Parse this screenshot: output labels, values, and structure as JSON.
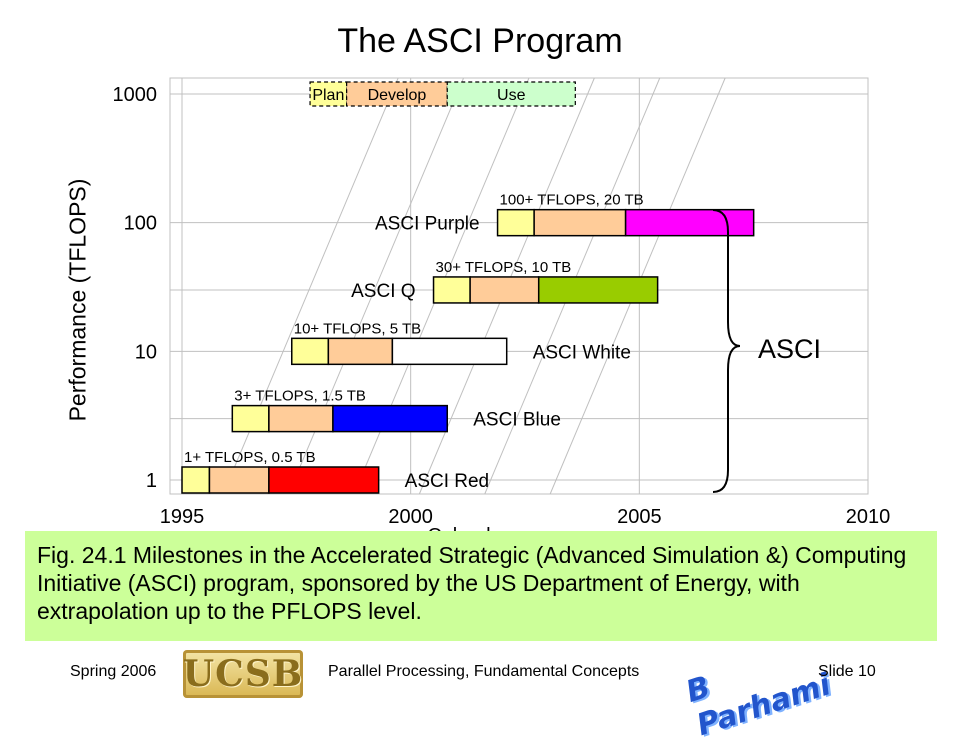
{
  "slide": {
    "title": "The ASCI Program",
    "caption": "Fig. 24.1   Milestones in the Accelerated Strategic (Advanced Simulation &) Computing Initiative (ASCI) program, sponsored by the US Department of Energy, with extrapolation up to the PFLOPS level.",
    "footer_left": "Spring  2006",
    "footer_center": "Parallel Processing, Fundamental Concepts",
    "footer_right": "Slide 10",
    "logo_ucsb": "UCSB",
    "logo_bp": "B Parhami"
  },
  "chart_data": {
    "type": "bar",
    "title": "The ASCI Program",
    "ylabel": "Performance (TFLOPS)",
    "xlabel": "Calendar year",
    "xlim": [
      1995,
      2010
    ],
    "x_ticks": [
      "1995",
      "2000",
      "2005",
      "2010"
    ],
    "y_scale": "log",
    "y_ticks": [
      "1",
      "10",
      "100",
      "1000"
    ],
    "grid": true,
    "phase_colors": {
      "Plan": "#ffff99",
      "Develop": "#ffcc99",
      "Use": "#ccffcc"
    },
    "legend": {
      "y": 1000,
      "items": [
        {
          "label": "Plan",
          "start": 1997.8,
          "end": 1998.6,
          "color": "#ffff99"
        },
        {
          "label": "Develop",
          "start": 1998.6,
          "end": 2000.8,
          "color": "#ffcc99"
        },
        {
          "label": "Use",
          "start": 2000.8,
          "end": 2003.6,
          "color": "#ccffcc"
        }
      ]
    },
    "systems": [
      {
        "name": "ASCI Red",
        "spec": "1+ TFLOPS, 0.5 TB",
        "tflops": 1,
        "plan": [
          1995.0,
          1995.6
        ],
        "develop": [
          1995.6,
          1996.9
        ],
        "use": [
          1996.9,
          1999.3
        ],
        "use_color": "#ff0000"
      },
      {
        "name": "ASCI Blue",
        "spec": "3+ TFLOPS,  1.5 TB",
        "tflops": 3,
        "plan": [
          1996.1,
          1996.9
        ],
        "develop": [
          1996.9,
          1998.3
        ],
        "use": [
          1998.3,
          2000.8
        ],
        "use_color": "#0000ff"
      },
      {
        "name": "ASCI White",
        "spec": "10+ TFLOPS, 5 TB",
        "tflops": 10,
        "plan": [
          1997.4,
          1998.2
        ],
        "develop": [
          1998.2,
          1999.6
        ],
        "use": [
          1999.6,
          2002.1
        ],
        "use_color": "#ffffff"
      },
      {
        "name": "ASCI Q",
        "spec": "30+ TFLOPS, 10 TB",
        "tflops": 30,
        "plan": [
          2000.5,
          2001.3
        ],
        "develop": [
          2001.3,
          2002.8
        ],
        "use": [
          2002.8,
          2005.4
        ],
        "use_color": "#99cc00"
      },
      {
        "name": "ASCI Purple",
        "spec": "100+ TFLOPS, 20 TB",
        "tflops": 100,
        "plan": [
          2001.9,
          2002.7
        ],
        "develop": [
          2002.7,
          2004.7
        ],
        "use": [
          2004.7,
          2007.5
        ],
        "use_color": "#ff00ff"
      }
    ],
    "brace_label": "ASCI"
  }
}
